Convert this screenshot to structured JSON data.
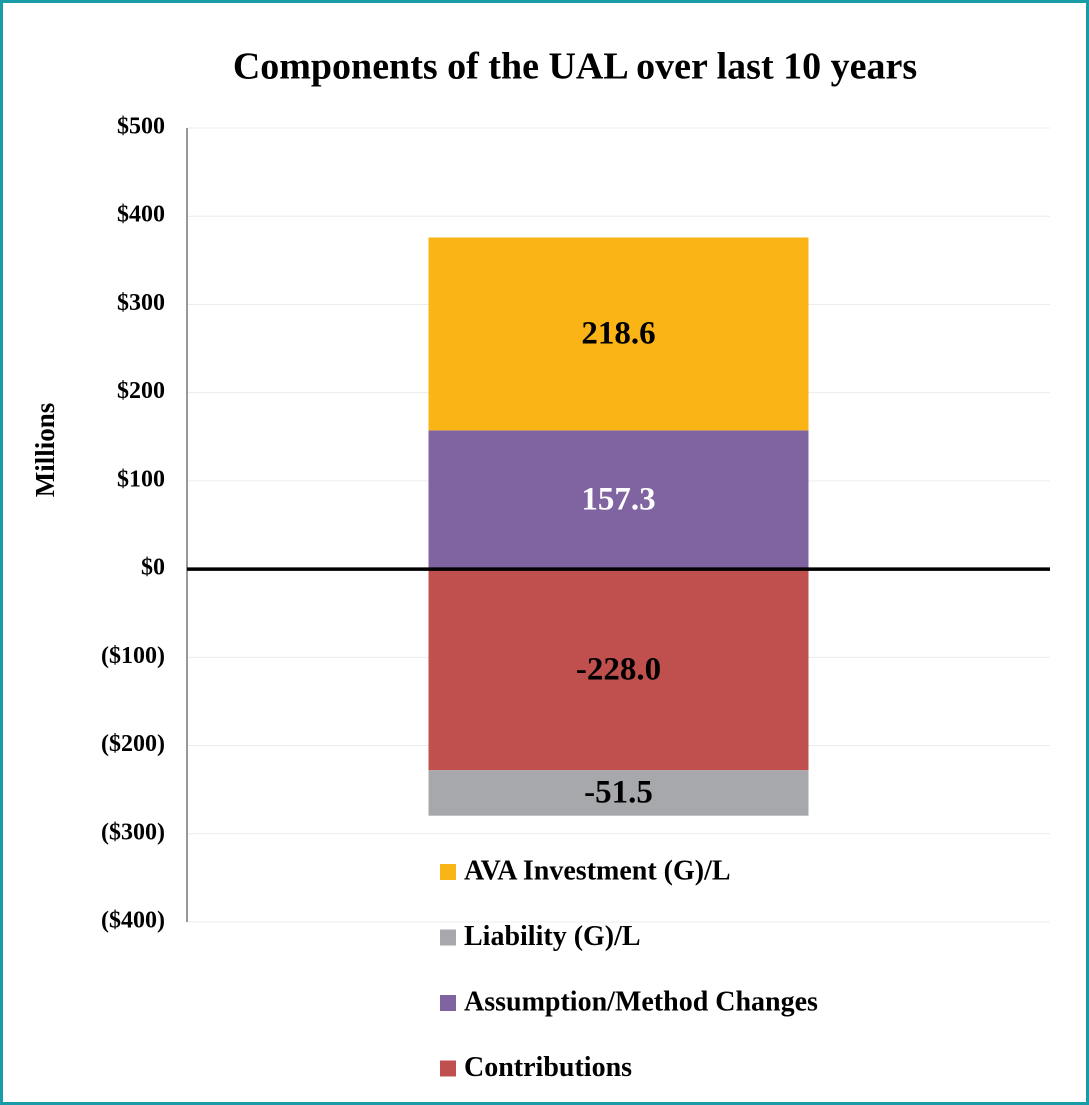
{
  "chart_data": {
    "type": "stacked_bar",
    "title": "Components of the UAL over last 10 years",
    "y_label": "Millions",
    "categories": [
      null
    ],
    "series": [
      {
        "name": "AVA Investment (G)/L",
        "color": "#fbb415",
        "label_color": "#000000",
        "values": [
          218.6
        ],
        "value_labels": [
          "218.6"
        ]
      },
      {
        "name": "Liability (G)/L",
        "color": "#a6a8ab",
        "label_color": "#000000",
        "values": [
          -51.5
        ],
        "value_labels": [
          "-51.5"
        ]
      },
      {
        "name": "Assumption/Method Changes",
        "color": "#8064a2",
        "label_color": "#ffffff",
        "values": [
          157.3
        ],
        "value_labels": [
          "157.3"
        ]
      },
      {
        "name": "Contributions",
        "color": "#c0504d",
        "label_color": "#000000",
        "values": [
          -228
        ],
        "value_labels": [
          "-228.0"
        ]
      }
    ],
    "ylim": [
      -400,
      500
    ],
    "yticks": [
      {
        "value": 500,
        "label": "$500"
      },
      {
        "value": 400,
        "label": "$400"
      },
      {
        "value": 300,
        "label": "$300"
      },
      {
        "value": 200,
        "label": "$200"
      },
      {
        "value": 100,
        "label": "$100"
      },
      {
        "value": 0,
        "label": "$0"
      },
      {
        "value": -100,
        "label": "($100)"
      },
      {
        "value": -200,
        "label": "($200)"
      },
      {
        "value": -300,
        "label": "($300)"
      },
      {
        "value": -400,
        "label": "($400)"
      }
    ],
    "grid": true,
    "legend": "bottom"
  }
}
